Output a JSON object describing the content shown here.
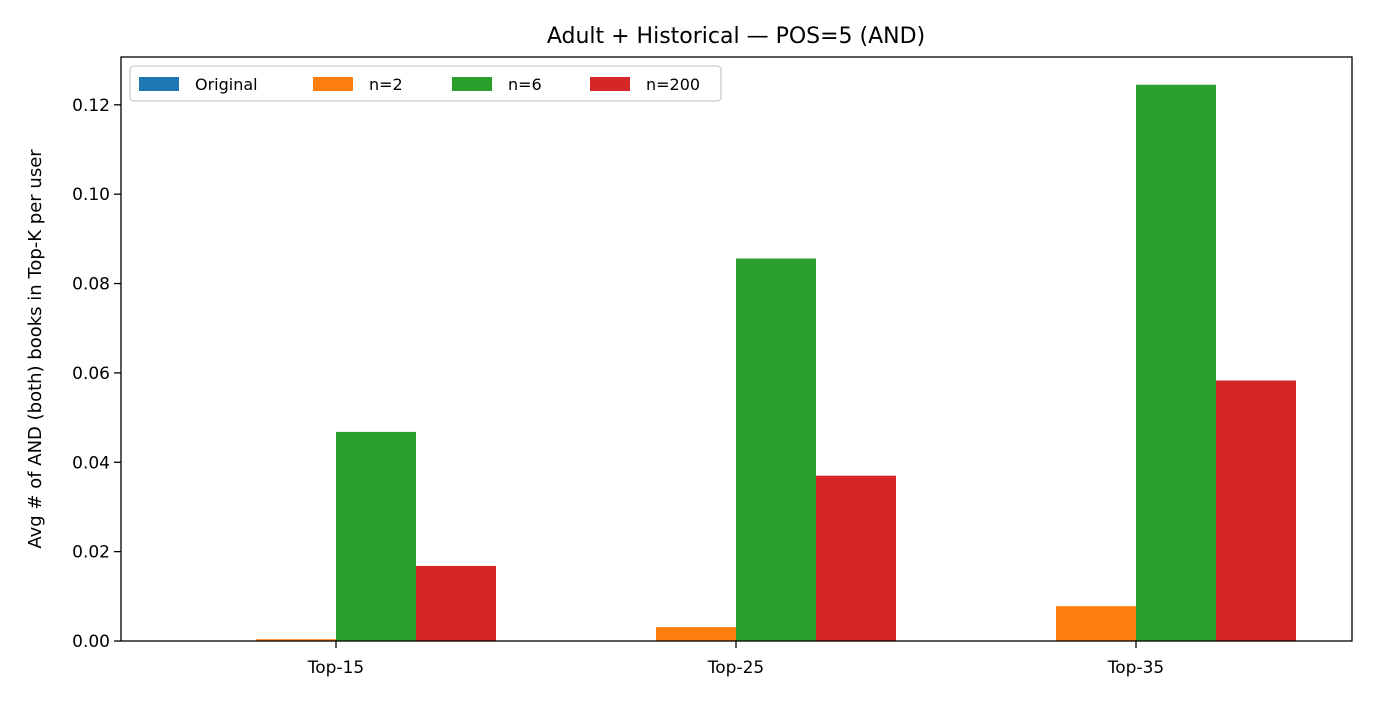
{
  "chart_data": {
    "type": "bar",
    "title": "Adult + Historical — POS=5 (AND)",
    "xlabel": "",
    "ylabel": "Avg # of AND (both) books in Top-K per user",
    "categories": [
      "Top-15",
      "Top-25",
      "Top-35"
    ],
    "series": [
      {
        "name": "Original",
        "color": "#1f77b4",
        "values": [
          0,
          0,
          0
        ]
      },
      {
        "name": "n=2",
        "color": "#ff7f0e",
        "values": [
          0.0004,
          0.0031,
          0.0078
        ]
      },
      {
        "name": "n=6",
        "color": "#2ca02c",
        "values": [
          0.0468,
          0.0856,
          0.1245
        ]
      },
      {
        "name": "n=200",
        "color": "#d62728",
        "values": [
          0.0168,
          0.037,
          0.0583
        ]
      }
    ],
    "ylim": [
      0,
      0.1307
    ],
    "yticks": [
      "0.00",
      "0.02",
      "0.04",
      "0.06",
      "0.08",
      "0.10",
      "0.12"
    ],
    "grid": false,
    "legend": "upper-left"
  }
}
